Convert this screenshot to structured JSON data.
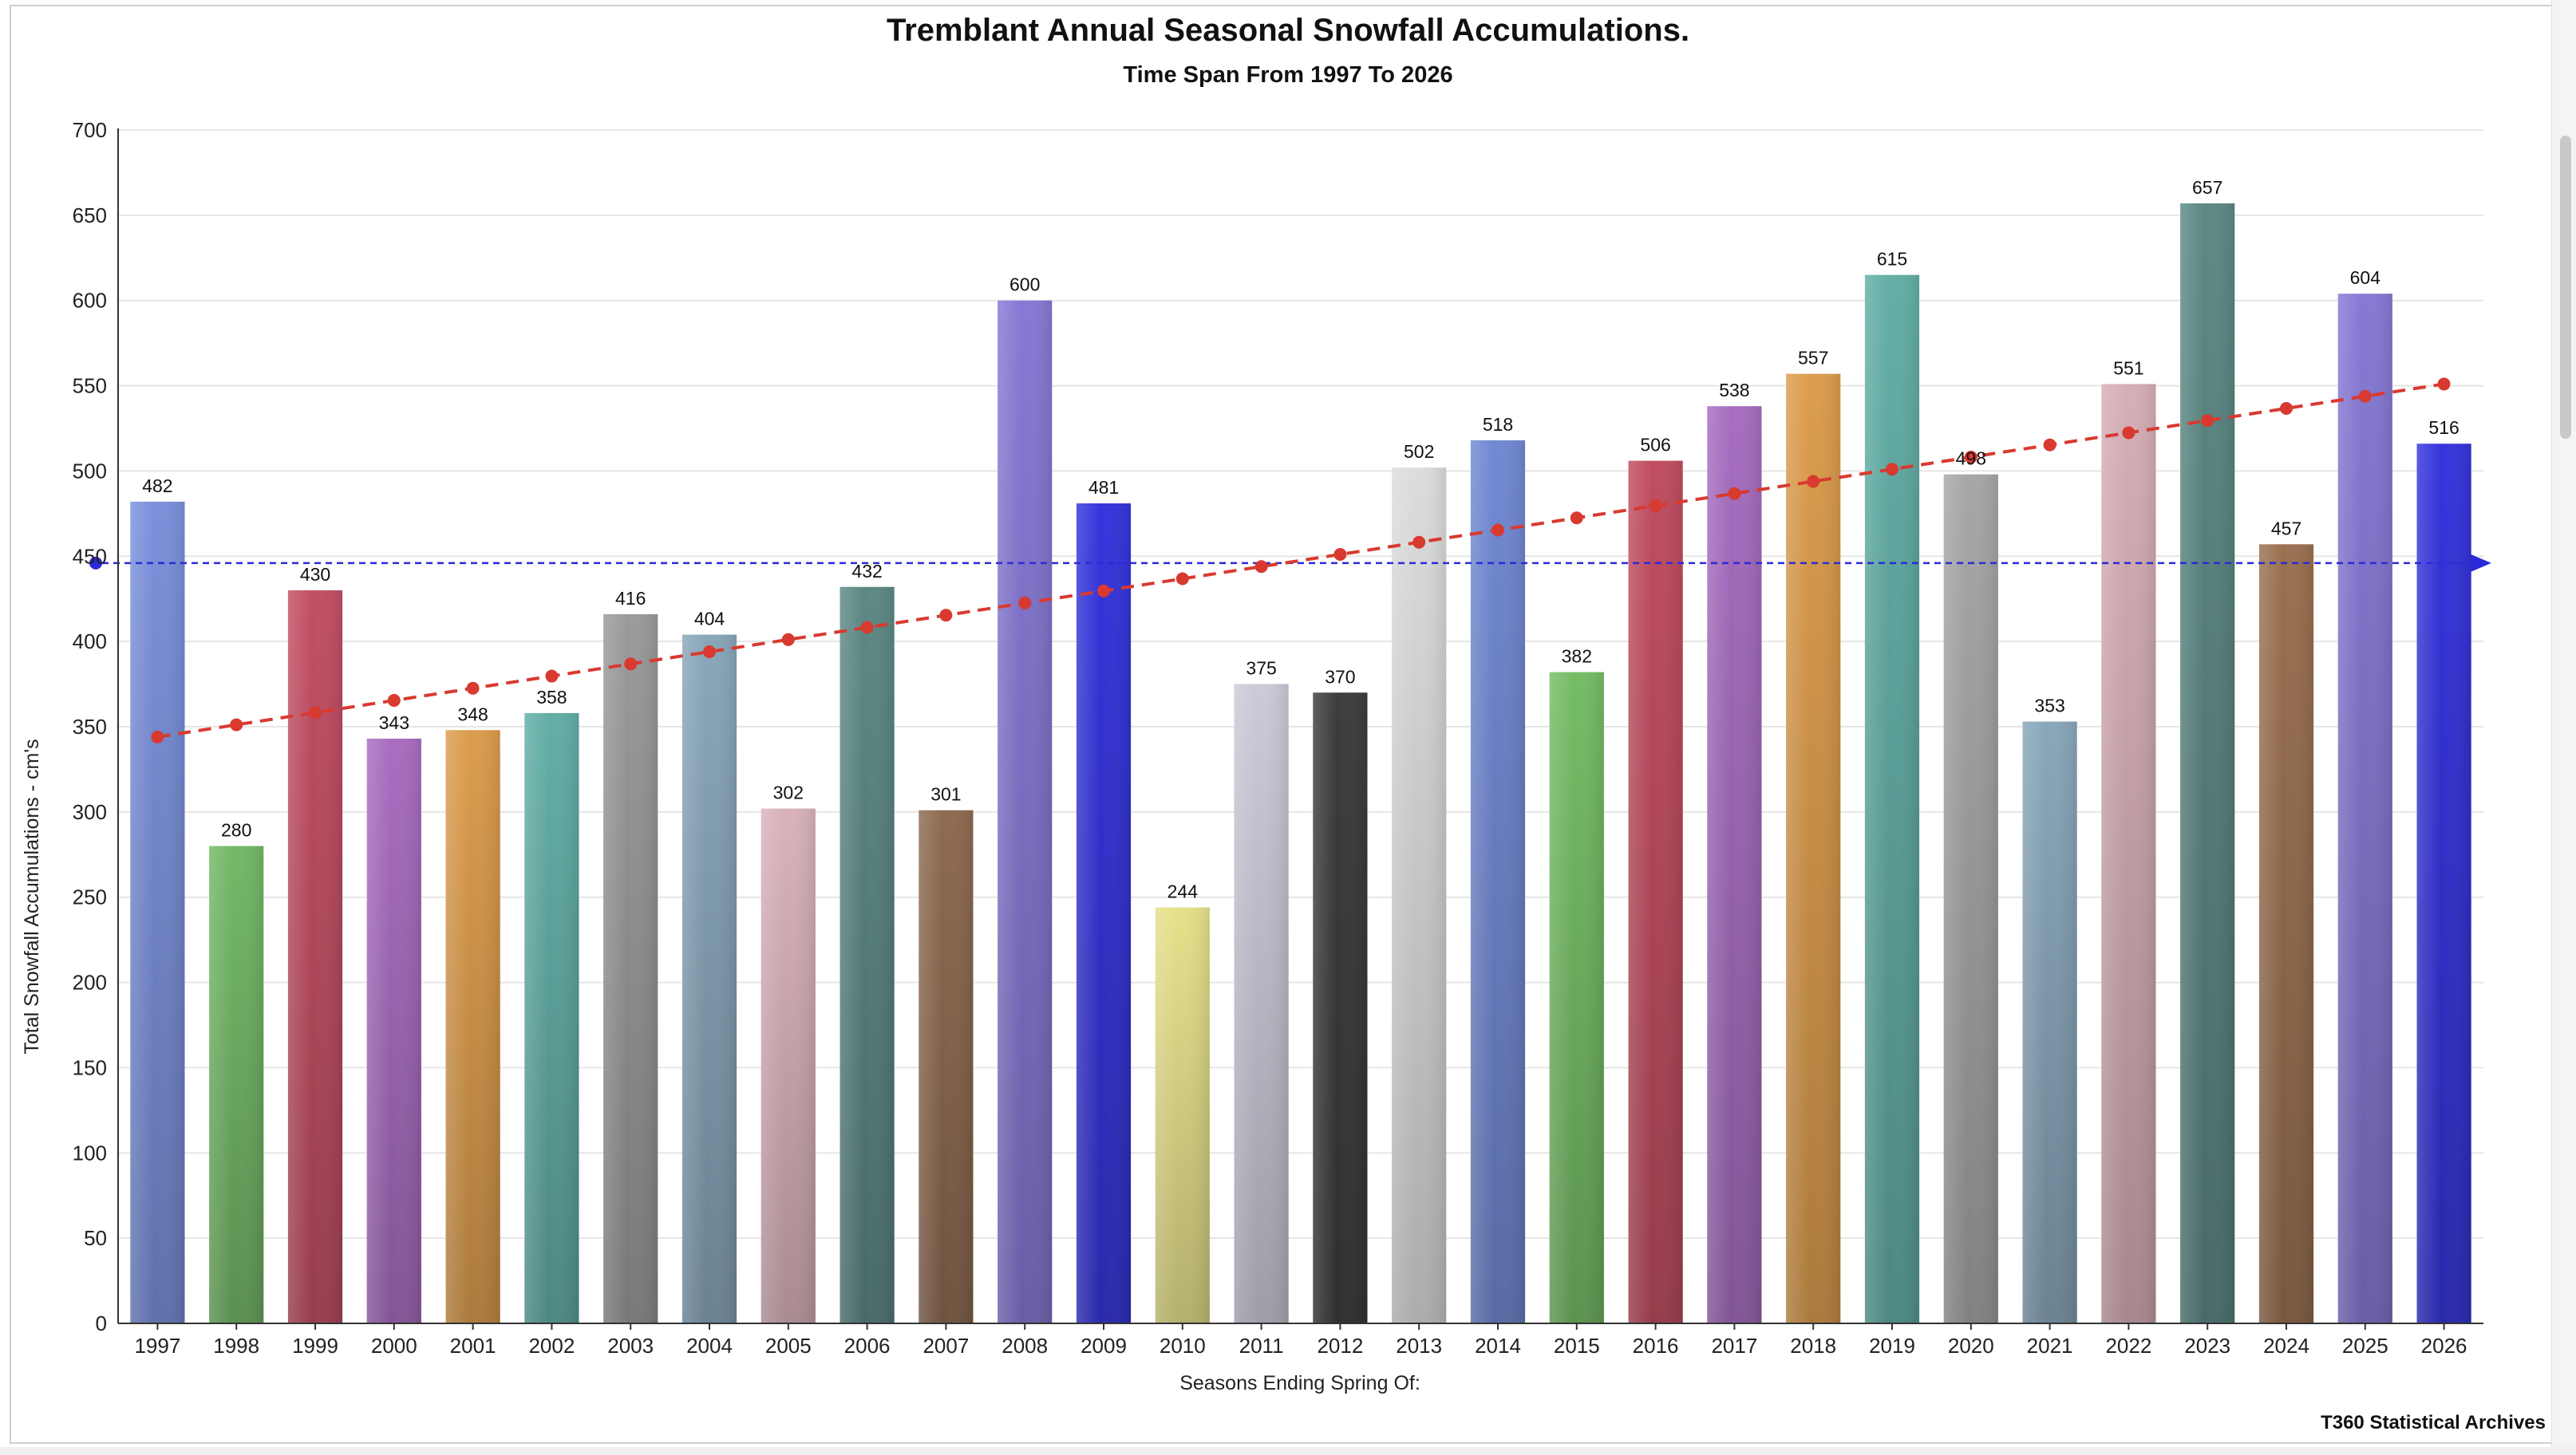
{
  "chart_data": {
    "type": "bar",
    "title": "Tremblant Annual Seasonal Snowfall Accumulations.",
    "subtitle": "Time Span From 1997 To 2026",
    "xlabel": "Seasons Ending Spring Of:",
    "ylabel": "Total Snowfall Accumulations - cm's",
    "ylim": [
      0,
      700
    ],
    "yticks": [
      0,
      50,
      100,
      150,
      200,
      250,
      300,
      350,
      400,
      450,
      500,
      550,
      600,
      650,
      700
    ],
    "grid": true,
    "categories": [
      "1997",
      "1998",
      "1999",
      "2000",
      "2001",
      "2002",
      "2003",
      "2004",
      "2005",
      "2006",
      "2007",
      "2008",
      "2009",
      "2010",
      "2011",
      "2012",
      "2013",
      "2014",
      "2015",
      "2016",
      "2017",
      "2018",
      "2019",
      "2020",
      "2021",
      "2022",
      "2023",
      "2024",
      "2025",
      "2026"
    ],
    "values": [
      482,
      280,
      430,
      343,
      348,
      358,
      416,
      404,
      302,
      432,
      301,
      600,
      481,
      244,
      375,
      370,
      502,
      518,
      382,
      506,
      538,
      557,
      615,
      498,
      353,
      551,
      657,
      457,
      604,
      516
    ],
    "bar_colors": [
      "#7a90db",
      "#72b866",
      "#c24e63",
      "#a86cc0",
      "#dc9c4c",
      "#62aea6",
      "#9a9a9a",
      "#88a6ba",
      "#d9b2ba",
      "#5c8884",
      "#8e6a50",
      "#8678d4",
      "#3434dc",
      "#e6e08a",
      "#cacad8",
      "#3c3c3c",
      "#dcdcdc",
      "#7088d2",
      "#74bc64",
      "#c04c60",
      "#a66cc0",
      "#dc9c4c",
      "#62aea6",
      "#a6a6a6",
      "#88a6ba",
      "#d6aeb6",
      "#5c8884",
      "#9a7050",
      "#8678d4",
      "#3434dc"
    ],
    "average": 446,
    "average_color": "#2a2ad8",
    "trend": {
      "start": 344,
      "end": 551,
      "color": "#d83a30"
    },
    "credit": "T360 Statistical Archives"
  }
}
